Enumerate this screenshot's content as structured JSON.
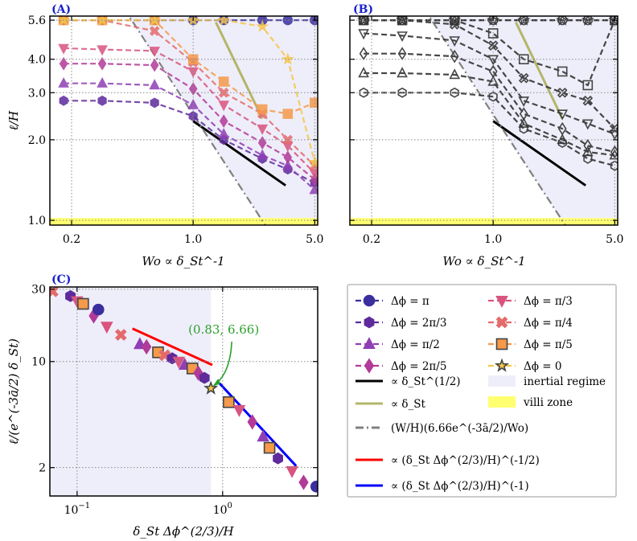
{
  "panels": {
    "A": {
      "label": "(A)"
    },
    "B": {
      "label": "(B)"
    },
    "C": {
      "label": "(C)"
    }
  },
  "axes_text": {
    "xlabel_ab": "Wo ∝ δ_St^-1",
    "ylabel_a": "ℓ/H",
    "xlabel_c": "δ_St Δϕ^(2/3)/H",
    "ylabel_c": "ℓ/(e^(-3ā/2) δ_St)"
  },
  "colors": {
    "pi": "#3b2f9e",
    "two_pi_3": "#5e2a9c",
    "pi_2": "#8f3fb5",
    "two_pi_5": "#b23a98",
    "pi_3": "#d9547e",
    "pi_4": "#e46b6b",
    "pi_5": "#f59a4a",
    "zero": "#f6c64a",
    "half_law": "#000000",
    "lin_law": "#b5b56a",
    "dashdot": "#808080",
    "red_law": "#ff0000",
    "blue_law": "#0000ff",
    "inertial": "#eeeefa",
    "villi": "#ffff70",
    "annot": "#2ca02c"
  },
  "legend": {
    "entries": [
      {
        "key": "pi",
        "label": "Δϕ = π",
        "marker": "circle-marker"
      },
      {
        "key": "pi_3",
        "label": "Δϕ = π/3",
        "marker": "triangle-down-marker"
      },
      {
        "key": "two_pi_3",
        "label": "Δϕ = 2π/3",
        "marker": "hexagon-marker"
      },
      {
        "key": "pi_4",
        "label": "Δϕ = π/4",
        "marker": "x-marker"
      },
      {
        "key": "pi_2",
        "label": "Δϕ = π/2",
        "marker": "triangle-up-marker"
      },
      {
        "key": "pi_5",
        "label": "Δϕ = π/5",
        "marker": "square-marker"
      },
      {
        "key": "two_pi_5",
        "label": "Δϕ = 2π/5",
        "marker": "diamond-marker"
      },
      {
        "key": "zero",
        "label": "Δϕ = 0",
        "marker": "star-marker"
      }
    ],
    "lines": [
      {
        "key": "half_law",
        "label": "∝ δ_St^(1/2)"
      },
      {
        "key": "lin_law",
        "label": "∝ δ_St"
      },
      {
        "key": "dashdot",
        "label": "(W/H)(6.66e^(-3ā/2)/Wo)"
      },
      {
        "key": "red_law",
        "label": "∝ (δ_St Δϕ^(2/3)/H)^(-1/2)"
      },
      {
        "key": "blue_law",
        "label": "∝ (δ_St Δϕ^(2/3)/H)^(-1)"
      }
    ],
    "patches": [
      {
        "key": "inertial",
        "label": "inertial regime"
      },
      {
        "key": "villi",
        "label": "villi zone"
      }
    ]
  },
  "chart_data": [
    {
      "panel": "A",
      "type": "line",
      "xscale": "log",
      "yscale": "log",
      "xlim": [
        0.15,
        5.2
      ],
      "ylim": [
        0.96,
        5.8
      ],
      "xticks": [
        0.2,
        1.0,
        5.0
      ],
      "xticklabels": [
        "0.2",
        "1.0",
        "5.0"
      ],
      "yticks": [
        1.0,
        2.0,
        3.0,
        4.0,
        5.6
      ],
      "yticklabels": [
        "1.0",
        "2.0",
        "3.0",
        "4.0",
        "5.6"
      ],
      "grid": true,
      "x": [
        0.18,
        0.3,
        0.6,
        1.0,
        1.5,
        2.5,
        3.5,
        5.0
      ],
      "series": [
        {
          "key": "pi",
          "values": [
            5.6,
            5.6,
            5.6,
            5.6,
            5.6,
            5.6,
            5.6,
            5.6
          ]
        },
        {
          "key": "two_pi_3",
          "values": [
            2.8,
            2.8,
            2.75,
            2.45,
            2.0,
            1.7,
            1.55,
            1.38
          ]
        },
        {
          "key": "pi_2",
          "values": [
            3.25,
            3.25,
            3.2,
            2.7,
            2.1,
            1.75,
            1.6,
            1.3
          ]
        },
        {
          "key": "two_pi_5",
          "values": [
            3.85,
            3.85,
            3.8,
            3.1,
            2.35,
            1.95,
            1.72,
            1.42
          ]
        },
        {
          "key": "pi_3",
          "values": [
            4.4,
            4.35,
            4.3,
            3.6,
            2.7,
            2.2,
            1.9,
            1.5
          ]
        },
        {
          "key": "pi_4",
          "values": [
            5.6,
            5.6,
            5.1,
            3.9,
            3.0,
            2.5,
            2.0,
            1.6
          ]
        },
        {
          "key": "pi_5",
          "values": [
            5.6,
            5.6,
            5.6,
            4.0,
            3.3,
            2.6,
            2.5,
            2.75
          ]
        },
        {
          "key": "zero",
          "values": [
            5.6,
            5.6,
            5.6,
            5.6,
            5.6,
            5.3,
            4.0,
            1.65
          ]
        }
      ],
      "refs": [
        {
          "key": "half_law",
          "x": [
            1.0,
            3.4
          ],
          "y": [
            2.35,
            1.35
          ]
        },
        {
          "key": "lin_law",
          "x": [
            1.35,
            2.5
          ],
          "y": [
            5.5,
            2.4
          ]
        },
        {
          "key": "dashdot",
          "x": [
            0.4,
            5.2
          ],
          "y": [
            6.2,
            0.48
          ]
        }
      ],
      "shade_inertial_from_x": 0.5,
      "villi_ymax": 1.02
    },
    {
      "panel": "B",
      "type": "line",
      "xscale": "log",
      "yscale": "log",
      "xlim": [
        0.15,
        5.2
      ],
      "ylim": [
        0.96,
        5.8
      ],
      "xticks": [
        0.2,
        1.0,
        5.0
      ],
      "xticklabels": [
        "0.2",
        "1.0",
        "5.0"
      ],
      "yticks": [
        1.0,
        2.0,
        3.0,
        4.0,
        5.6
      ],
      "yticklabels": [
        "",
        "",
        "",
        "",
        ""
      ],
      "grid": true,
      "x": [
        0.18,
        0.3,
        0.6,
        1.0,
        1.5,
        2.5,
        3.5,
        5.0
      ],
      "series": [
        {
          "key": "pi",
          "marker": "circle-marker",
          "values": [
            5.6,
            5.6,
            5.6,
            5.6,
            5.6,
            5.6,
            5.6,
            5.6
          ]
        },
        {
          "key": "two_pi_3",
          "marker": "hexagon-marker",
          "values": [
            3.0,
            3.0,
            3.0,
            2.9,
            2.2,
            1.95,
            1.7,
            1.6
          ]
        },
        {
          "key": "pi_2",
          "marker": "triangle-up-marker",
          "values": [
            3.55,
            3.55,
            3.5,
            3.3,
            2.3,
            2.0,
            1.8,
            1.75
          ]
        },
        {
          "key": "two_pi_5",
          "marker": "diamond-marker",
          "values": [
            4.2,
            4.2,
            4.1,
            3.6,
            2.5,
            2.2,
            1.9,
            1.8
          ]
        },
        {
          "key": "pi_3",
          "marker": "triangle-down-marker",
          "values": [
            5.0,
            4.9,
            4.7,
            4.0,
            2.8,
            2.5,
            2.3,
            2.1
          ]
        },
        {
          "key": "pi_4",
          "marker": "x-marker",
          "values": [
            5.6,
            5.6,
            5.4,
            4.5,
            3.4,
            3.0,
            2.8,
            2.2
          ]
        },
        {
          "key": "pi_5",
          "marker": "square-marker",
          "values": [
            5.6,
            5.6,
            5.6,
            5.0,
            4.0,
            3.6,
            3.2,
            5.6
          ]
        },
        {
          "key": "zero",
          "marker": "star-marker",
          "values": [
            5.6,
            5.6,
            5.6,
            5.6,
            5.6,
            5.6,
            5.6,
            5.6
          ]
        }
      ],
      "refs": [
        {
          "key": "half_law",
          "x": [
            1.0,
            3.4
          ],
          "y": [
            2.35,
            1.35
          ]
        },
        {
          "key": "lin_law",
          "x": [
            1.35,
            2.5
          ],
          "y": [
            5.5,
            2.4
          ]
        },
        {
          "key": "dashdot",
          "x": [
            0.4,
            5.2
          ],
          "y": [
            6.2,
            0.48
          ]
        }
      ],
      "shade_inertial_from_x": 0.5,
      "villi_ymax": 1.02
    },
    {
      "panel": "C",
      "type": "scatter",
      "xscale": "log",
      "yscale": "log",
      "xlim": [
        0.065,
        4.5
      ],
      "ylim": [
        1.3,
        31
      ],
      "xticks": [
        0.1,
        1.0
      ],
      "xticklabels": [
        "10^-1",
        "10^0"
      ],
      "yticks": [
        2,
        10,
        30
      ],
      "yticklabels": [
        "2",
        "10",
        "30"
      ],
      "grid": true,
      "inertial_regime_xmax": 0.83,
      "annotation": {
        "text": "(0.83, 6.66)",
        "x": 0.83,
        "y": 6.66
      },
      "points": [
        {
          "key": "pi_4",
          "x": 0.068,
          "y": 29
        },
        {
          "key": "two_pi_3",
          "x": 0.09,
          "y": 27
        },
        {
          "key": "pi_3",
          "x": 0.1,
          "y": 25
        },
        {
          "key": "pi_5",
          "x": 0.11,
          "y": 24
        },
        {
          "key": "two_pi_5",
          "x": 0.13,
          "y": 20
        },
        {
          "key": "pi",
          "x": 0.14,
          "y": 22
        },
        {
          "key": "pi_3",
          "x": 0.16,
          "y": 17
        },
        {
          "key": "pi_4",
          "x": 0.2,
          "y": 15
        },
        {
          "key": "pi_2",
          "x": 0.27,
          "y": 13
        },
        {
          "key": "two_pi_5",
          "x": 0.3,
          "y": 12.5
        },
        {
          "key": "pi_5",
          "x": 0.36,
          "y": 11.5
        },
        {
          "key": "pi_4",
          "x": 0.4,
          "y": 11
        },
        {
          "key": "two_pi_3",
          "x": 0.45,
          "y": 10.5
        },
        {
          "key": "pi_3",
          "x": 0.5,
          "y": 10
        },
        {
          "key": "pi_2",
          "x": 0.55,
          "y": 9.5
        },
        {
          "key": "pi_5",
          "x": 0.62,
          "y": 9.0
        },
        {
          "key": "two_pi_5",
          "x": 0.68,
          "y": 8.4
        },
        {
          "key": "two_pi_3",
          "x": 0.75,
          "y": 7.8
        },
        {
          "key": "zero",
          "x": 0.83,
          "y": 6.66
        },
        {
          "key": "pi_5",
          "x": 1.1,
          "y": 5.4
        },
        {
          "key": "pi_3",
          "x": 1.3,
          "y": 4.8
        },
        {
          "key": "two_pi_5",
          "x": 1.6,
          "y": 4.0
        },
        {
          "key": "pi_2",
          "x": 1.9,
          "y": 3.2
        },
        {
          "key": "pi_5",
          "x": 2.1,
          "y": 2.7
        },
        {
          "key": "two_pi_3",
          "x": 2.4,
          "y": 2.3
        },
        {
          "key": "pi_3",
          "x": 3.0,
          "y": 1.9
        },
        {
          "key": "two_pi_5",
          "x": 3.6,
          "y": 1.6
        },
        {
          "key": "pi",
          "x": 4.4,
          "y": 1.5
        }
      ],
      "refs": [
        {
          "key": "red_law",
          "x": [
            0.24,
            0.85
          ],
          "y": [
            16.5,
            9.5
          ]
        },
        {
          "key": "blue_law",
          "x": [
            0.95,
            3.2
          ],
          "y": [
            7.2,
            2.05
          ]
        }
      ]
    }
  ]
}
